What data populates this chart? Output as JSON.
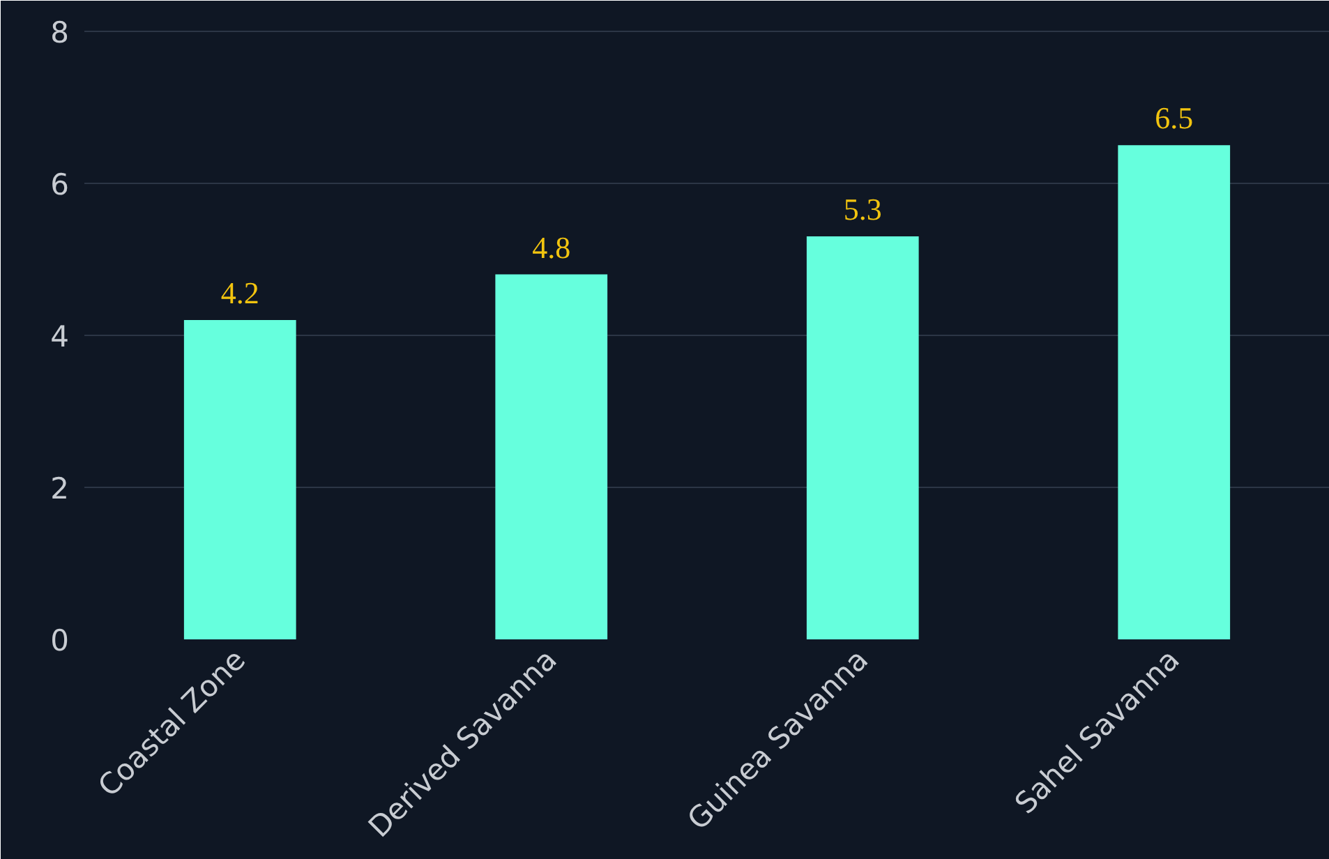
{
  "chart_data": {
    "type": "bar",
    "categories": [
      "Coastal Zone",
      "Derived Savanna",
      "Guinea Savanna",
      "Sahel Savanna"
    ],
    "values": [
      4.2,
      4.8,
      5.3,
      6.5
    ],
    "color": "#66ffdd",
    "ylim": [
      0,
      8.4
    ],
    "yticks": [
      0,
      2,
      4,
      6,
      8
    ],
    "grid": "y",
    "data_labels": true
  }
}
